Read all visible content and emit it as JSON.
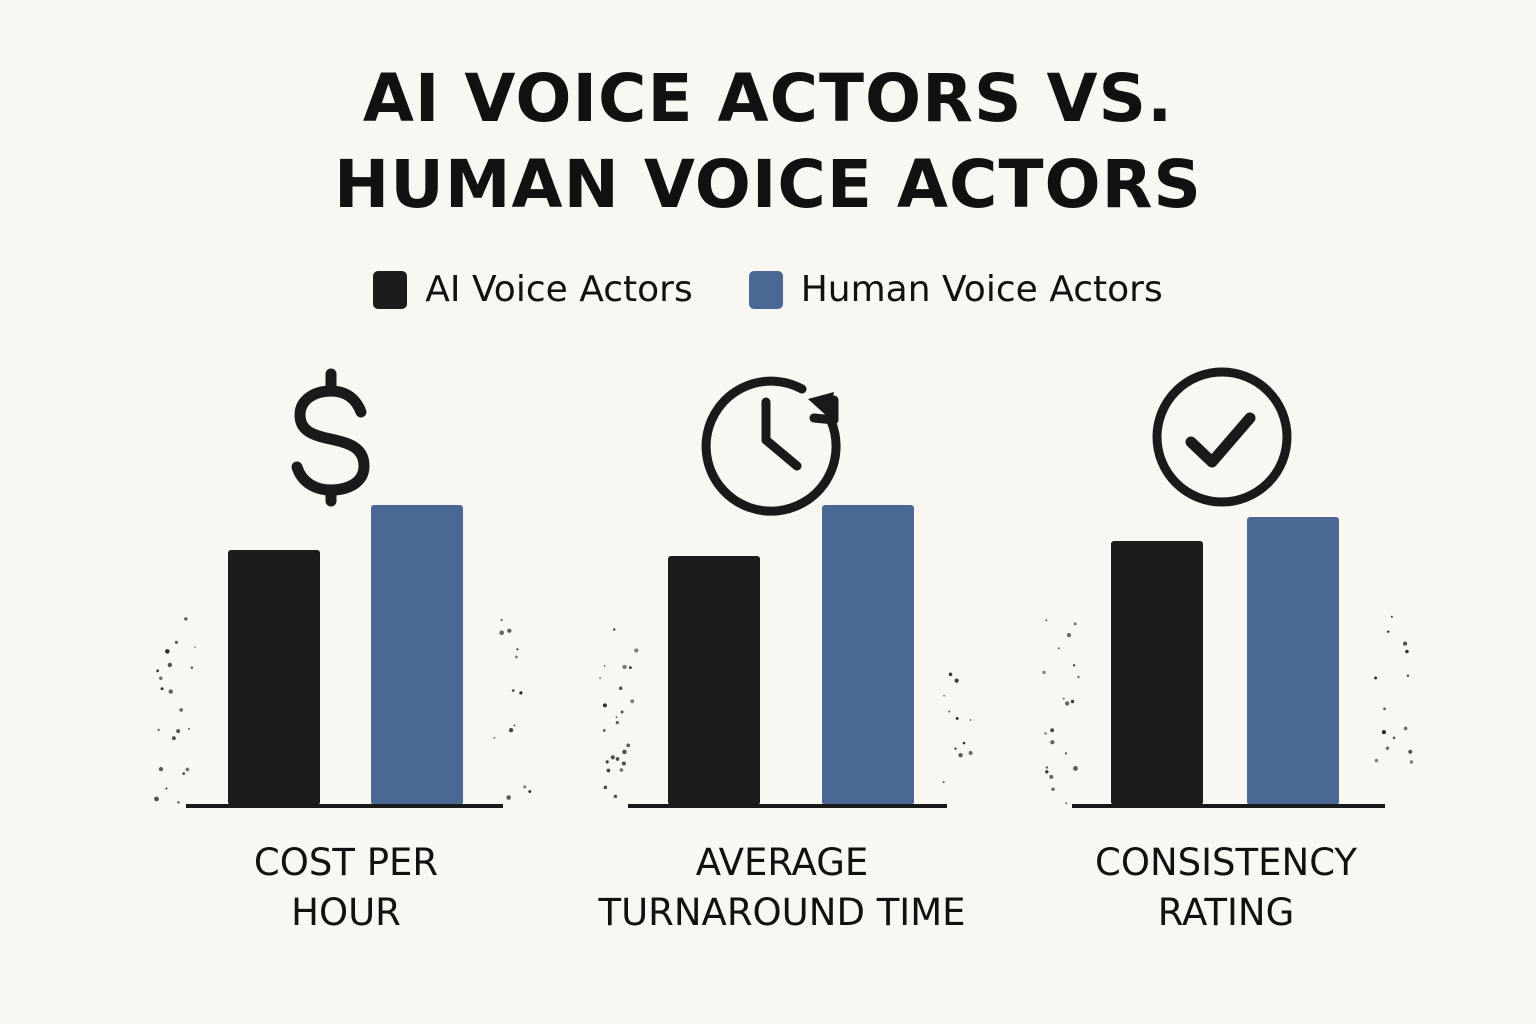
{
  "chart_data": {
    "type": "bar",
    "title": "AI VOICE ACTORS VS. HUMAN VOICE ACTORS",
    "title_lines": [
      "AI VOICE ACTORS VS.",
      "HUMAN VOICE ACTORS"
    ],
    "categories": [
      "COST PER HOUR",
      "AVERAGE TURNAROUND TIME",
      "CONSISTENCY RATING"
    ],
    "category_lines": [
      [
        "COST PER",
        "HOUR"
      ],
      [
        "AVERAGE",
        "TURNAROUND TIME"
      ],
      [
        "CONSISTENCY",
        "RATING"
      ]
    ],
    "category_icons": [
      "dollar-icon",
      "clock-refresh-icon",
      "checkmark-circle-icon"
    ],
    "series": [
      {
        "name": "AI Voice Actors",
        "color": "#1c1c1c",
        "values": [
          85,
          83,
          88
        ]
      },
      {
        "name": "Human Voice Actors",
        "color": "#4a6893",
        "values": [
          100,
          100,
          96
        ]
      }
    ],
    "ylim": [
      0,
      100
    ],
    "axes_visible": false,
    "grid": false,
    "legend_position": "top-center"
  }
}
